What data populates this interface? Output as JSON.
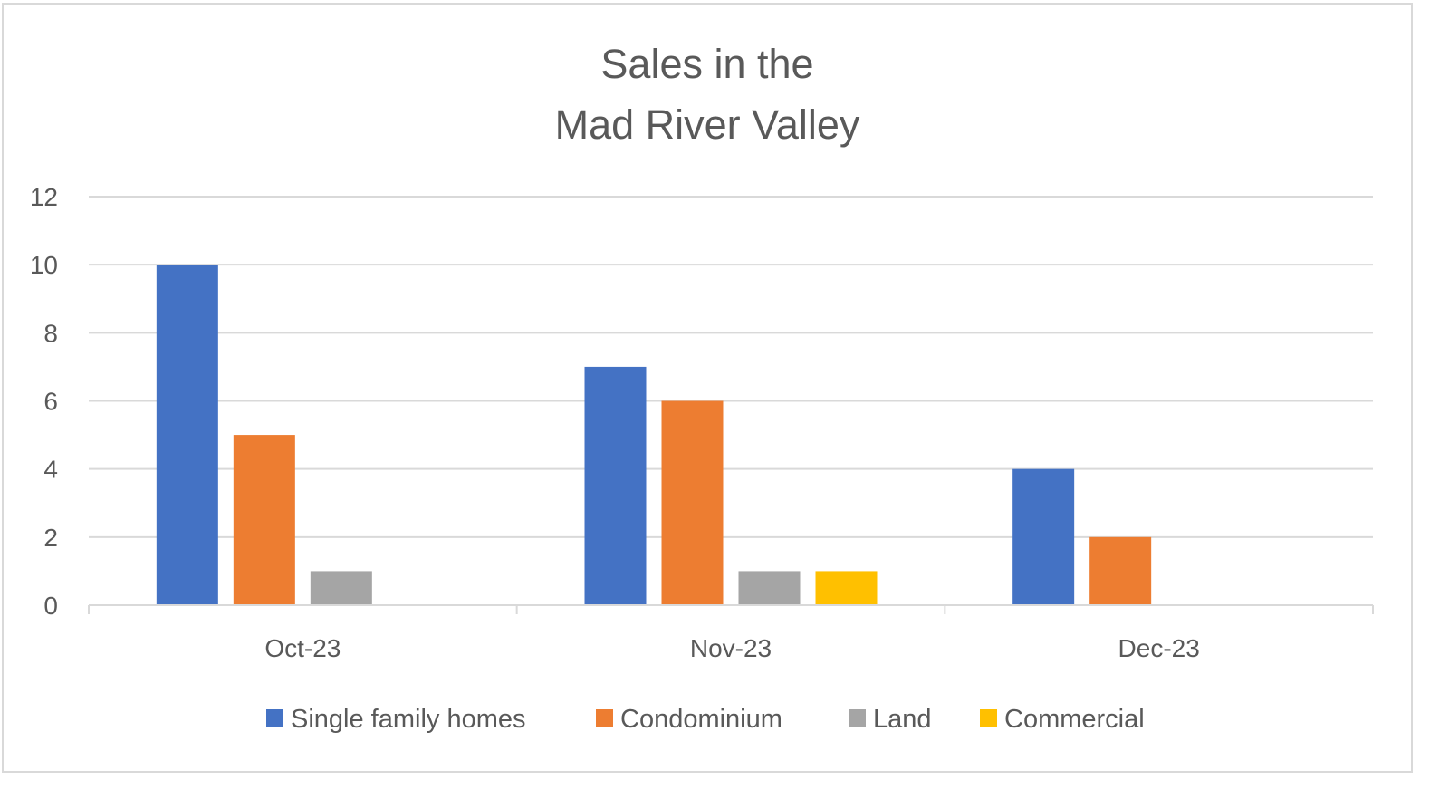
{
  "chart_data": {
    "type": "bar",
    "title": [
      "Sales in the",
      "Mad River Valley"
    ],
    "xlabel": "",
    "ylabel": "",
    "categories": [
      "Oct-23",
      "Nov-23",
      "Dec-23"
    ],
    "series": [
      {
        "name": "Single family homes",
        "color": "#4472C4",
        "values": [
          10,
          7,
          4
        ]
      },
      {
        "name": "Condominium",
        "color": "#ED7D31",
        "values": [
          5,
          6,
          2
        ]
      },
      {
        "name": "Land",
        "color": "#A5A5A5",
        "values": [
          1,
          1,
          0
        ]
      },
      {
        "name": "Commercial",
        "color": "#FFC000",
        "values": [
          0,
          1,
          0
        ]
      }
    ],
    "ylim": [
      0,
      12
    ],
    "yticks": [
      0,
      2,
      4,
      6,
      8,
      10,
      12
    ],
    "grid": true,
    "legend": "bottom"
  }
}
